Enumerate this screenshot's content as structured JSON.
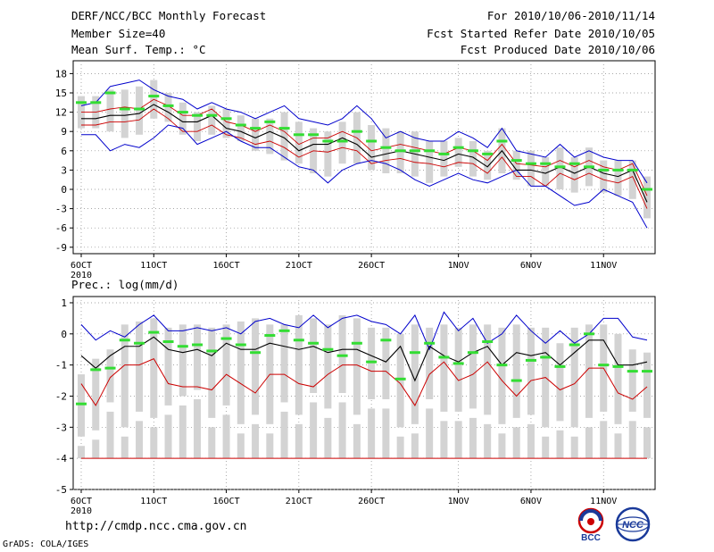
{
  "header": {
    "title": "DERF/NCC/BCC Monthly Forecast",
    "member_size": "Member Size=40",
    "variable": "Mean Surf. Temp.: °C",
    "forecast_period": "For 2010/10/06-2010/11/14",
    "start_date": "Fcst Started Refer Date 2010/10/05",
    "produced_date": "Fcst Produced Date 2010/10/06"
  },
  "footer": {
    "url": "http://cmdp.ncc.cma.gov.cn",
    "credit": "GrADS: COLA/IGES",
    "logo_bcc": "BCC",
    "logo_ncc": "NCC"
  },
  "colors": {
    "box": "#d3d3d3",
    "max": "#0000cc",
    "min": "#cc0000",
    "mean": "#000000",
    "clim": "#33dd33",
    "grid": "#888888",
    "lower": "#cc0000"
  },
  "chart_data": [
    {
      "type": "line",
      "title": "Mean Surf. Temp.: °C",
      "xlabel": "",
      "ylabel": "",
      "x": "days 1-40 (2010/10/06 - 2010/11/14)",
      "x_ticks": [
        {
          "day": 1,
          "label": "6OCT"
        },
        {
          "day": 6,
          "label": "11OCT"
        },
        {
          "day": 11,
          "label": "16OCT"
        },
        {
          "day": 16,
          "label": "21OCT"
        },
        {
          "day": 21,
          "label": "26OCT"
        },
        {
          "day": 27,
          "label": "1NOV"
        },
        {
          "day": 32,
          "label": "6NOV"
        },
        {
          "day": 37,
          "label": "11NOV"
        }
      ],
      "x_sublabel": "2010",
      "ylim": [
        -10,
        20
      ],
      "y_ticks": [
        18,
        15,
        12,
        9,
        6,
        3,
        0,
        -3,
        -6,
        -9
      ],
      "grid": true,
      "series": [
        {
          "name": "ensemble maximum",
          "values": [
            8.5,
            8.5,
            6.0,
            7.0,
            6.5,
            8.0,
            10.0,
            9.5,
            7.0,
            8.0,
            9.0,
            7.5,
            6.5,
            6.5,
            5.0,
            3.5,
            3.0,
            1.0,
            3.0,
            4.0,
            4.5,
            4.0,
            3.0,
            1.5,
            0.5,
            1.5,
            2.5,
            1.5,
            1.0,
            2.0,
            3.0,
            0.5,
            0.5,
            -1.0,
            -2.5,
            -2.0,
            0.0,
            -1.0,
            -2.0,
            -6.0
          ]
        },
        {
          "name": "ensemble mean",
          "values": [
            11.0,
            11.0,
            11.5,
            11.5,
            11.8,
            13.2,
            12.0,
            10.5,
            10.5,
            11.5,
            9.5,
            9.0,
            8.0,
            9.0,
            8.0,
            6.0,
            7.0,
            7.0,
            8.0,
            7.0,
            5.0,
            5.5,
            6.0,
            5.5,
            5.0,
            4.5,
            5.5,
            5.0,
            3.5,
            6.0,
            3.0,
            3.0,
            2.5,
            3.5,
            2.5,
            3.5,
            2.5,
            2.0,
            3.0,
            -2.0
          ]
        },
        {
          "name": "ensemble minimum",
          "values": [
            13.0,
            13.5,
            16.0,
            16.5,
            17.0,
            15.5,
            14.5,
            14.0,
            12.5,
            13.5,
            12.5,
            12.0,
            11.0,
            12.0,
            13.0,
            11.0,
            10.5,
            10.0,
            11.0,
            13.0,
            11.0,
            8.0,
            9.0,
            8.0,
            7.5,
            7.5,
            9.0,
            8.0,
            6.5,
            9.5,
            6.0,
            5.5,
            5.0,
            7.0,
            5.0,
            6.0,
            5.0,
            4.5,
            4.5,
            1.0
          ]
        },
        {
          "name": "lower member bound",
          "values": [
            10.0,
            10.0,
            10.5,
            10.5,
            10.8,
            12.5,
            11.0,
            9.0,
            9.0,
            10.0,
            8.5,
            8.0,
            7.0,
            7.5,
            6.5,
            5.0,
            6.0,
            5.8,
            6.5,
            6.0,
            4.0,
            4.5,
            4.8,
            4.2,
            4.0,
            3.5,
            4.2,
            4.0,
            2.5,
            5.0,
            2.0,
            2.0,
            0.5,
            2.5,
            1.5,
            2.5,
            1.5,
            1.0,
            2.0,
            -3.0
          ]
        },
        {
          "name": "upper member bound",
          "values": [
            12.0,
            12.0,
            12.5,
            12.8,
            12.5,
            14.0,
            13.0,
            11.5,
            11.5,
            12.5,
            10.5,
            10.0,
            9.0,
            10.0,
            9.0,
            7.0,
            8.0,
            8.0,
            9.0,
            8.0,
            6.0,
            6.5,
            7.0,
            6.5,
            6.0,
            5.5,
            6.5,
            6.0,
            4.5,
            7.0,
            4.0,
            3.8,
            3.5,
            4.5,
            3.5,
            4.5,
            3.5,
            3.0,
            4.0,
            -1.0
          ]
        },
        {
          "name": "climatology",
          "values": [
            13.5,
            13.5,
            15.0,
            12.5,
            12.5,
            14.5,
            13.0,
            12.0,
            11.5,
            11.5,
            11.0,
            10.0,
            9.5,
            10.5,
            9.5,
            8.5,
            8.5,
            7.5,
            7.5,
            9.0,
            7.5,
            6.5,
            6.0,
            6.0,
            6.0,
            5.5,
            6.5,
            6.0,
            5.5,
            7.5,
            4.5,
            4.0,
            4.0,
            3.5,
            4.0,
            3.5,
            3.0,
            3.0,
            3.0,
            0.0
          ]
        },
        {
          "name": "spread box low",
          "values": [
            9.5,
            9.5,
            9.0,
            8.0,
            8.5,
            11.0,
            10.5,
            8.5,
            7.5,
            8.5,
            8.0,
            7.5,
            6.0,
            5.5,
            4.5,
            4.0,
            2.5,
            2.0,
            4.0,
            4.0,
            3.0,
            2.5,
            2.5,
            2.0,
            1.0,
            2.0,
            3.5,
            2.0,
            1.5,
            2.5,
            1.5,
            0.5,
            0.5,
            0.0,
            -0.5,
            0.5,
            -0.5,
            -1.0,
            -1.5,
            -4.5
          ]
        },
        {
          "name": "spread box high",
          "values": [
            14.5,
            14.5,
            15.5,
            15.5,
            16.0,
            17.0,
            15.0,
            13.5,
            12.0,
            13.0,
            12.5,
            11.5,
            11.0,
            11.0,
            12.0,
            10.5,
            9.5,
            9.0,
            10.5,
            12.0,
            10.0,
            9.5,
            9.0,
            9.0,
            7.5,
            7.5,
            8.0,
            7.5,
            6.0,
            9.5,
            6.0,
            6.0,
            5.0,
            6.5,
            5.0,
            6.5,
            4.5,
            4.5,
            4.5,
            2.0
          ]
        }
      ]
    },
    {
      "type": "line",
      "title": "Prec.: log(mm/d)",
      "xlabel": "",
      "ylabel": "",
      "x": "days 1-40 (2010/10/06 - 2010/11/14)",
      "x_ticks": [
        {
          "day": 1,
          "label": "6OCT"
        },
        {
          "day": 6,
          "label": "11OCT"
        },
        {
          "day": 11,
          "label": "16OCT"
        },
        {
          "day": 16,
          "label": "21OCT"
        },
        {
          "day": 21,
          "label": "26OCT"
        },
        {
          "day": 27,
          "label": "1NOV"
        },
        {
          "day": 32,
          "label": "6NOV"
        },
        {
          "day": 37,
          "label": "11NOV"
        }
      ],
      "x_sublabel": "2010",
      "ylim": [
        -5,
        1.2
      ],
      "y_ticks": [
        1,
        0,
        -1,
        -2,
        -3,
        -4,
        -5
      ],
      "grid": true,
      "lower_limit": -4,
      "series": [
        {
          "name": "ensemble maximum",
          "values": [
            0.3,
            -0.2,
            0.1,
            -0.1,
            0.3,
            0.6,
            0.1,
            0.1,
            0.2,
            0.1,
            0.2,
            0.0,
            0.4,
            0.5,
            0.3,
            0.2,
            0.6,
            0.2,
            0.5,
            0.6,
            0.4,
            0.3,
            0.0,
            0.6,
            -0.5,
            0.7,
            0.1,
            0.5,
            -0.3,
            0.0,
            0.6,
            0.1,
            -0.3,
            0.1,
            -0.3,
            0.0,
            0.5,
            0.5,
            -0.1,
            -0.2
          ]
        },
        {
          "name": "ensemble mean",
          "values": [
            -0.7,
            -1.1,
            -0.7,
            -0.4,
            -0.4,
            -0.1,
            -0.5,
            -0.6,
            -0.5,
            -0.7,
            -0.3,
            -0.5,
            -0.5,
            -0.3,
            -0.4,
            -0.5,
            -0.4,
            -0.6,
            -0.5,
            -0.5,
            -0.7,
            -0.9,
            -0.4,
            -1.5,
            -0.4,
            -0.7,
            -0.9,
            -0.6,
            -0.4,
            -1.0,
            -0.6,
            -0.7,
            -0.6,
            -1.0,
            -0.6,
            -0.2,
            -0.2,
            -1.0,
            -1.0,
            -0.9
          ]
        },
        {
          "name": "ensemble minimum",
          "values": [
            -1.6,
            -2.3,
            -1.4,
            -1.0,
            -1.0,
            -0.8,
            -1.6,
            -1.7,
            -1.7,
            -1.8,
            -1.3,
            -1.6,
            -1.9,
            -1.3,
            -1.3,
            -1.6,
            -1.7,
            -1.3,
            -1.0,
            -1.0,
            -1.2,
            -1.2,
            -1.6,
            -2.3,
            -1.3,
            -0.9,
            -1.5,
            -1.3,
            -0.9,
            -1.5,
            -2.0,
            -1.5,
            -1.4,
            -1.8,
            -1.6,
            -1.1,
            -1.1,
            -1.9,
            -2.1,
            -1.7
          ]
        },
        {
          "name": "climatology",
          "values": [
            -2.25,
            -1.15,
            -1.1,
            -0.2,
            -0.3,
            0.05,
            -0.25,
            -0.4,
            -0.35,
            -0.55,
            -0.15,
            -0.35,
            -0.6,
            -0.05,
            0.1,
            -0.2,
            -0.3,
            -0.5,
            -0.7,
            -0.3,
            -0.9,
            -0.2,
            -1.45,
            -0.6,
            -0.3,
            -0.75,
            -0.95,
            -0.6,
            -0.25,
            -1.0,
            -1.5,
            -0.85,
            -0.75,
            -1.05,
            -0.35,
            0.0,
            -1.0,
            -1.05,
            -1.2,
            -1.2
          ]
        },
        {
          "name": "spread box low",
          "values": [
            -4.0,
            -4.0,
            -4.0,
            -4.0,
            -4.0,
            -4.0,
            -4.0,
            -4.0,
            -4.0,
            -4.0,
            -4.0,
            -4.0,
            -4.0,
            -4.0,
            -4.0,
            -4.0,
            -4.0,
            -4.0,
            -4.0,
            -4.0,
            -4.0,
            -4.0,
            -4.0,
            -4.0,
            -4.0,
            -4.0,
            -4.0,
            -4.0,
            -4.0,
            -4.0,
            -4.0,
            -4.0,
            -4.0,
            -4.0,
            -4.0,
            -4.0,
            -4.0,
            -4.0,
            -4.0,
            -4.0
          ]
        },
        {
          "name": "spread box high",
          "values": [
            -1.3,
            -0.8,
            -0.5,
            0.3,
            0.4,
            0.5,
            0.2,
            0.3,
            0.3,
            0.2,
            0.3,
            0.4,
            0.5,
            0.3,
            0.3,
            0.6,
            0.5,
            0.3,
            0.6,
            0.5,
            0.2,
            0.2,
            0.0,
            0.3,
            0.2,
            0.3,
            0.2,
            0.3,
            0.3,
            0.2,
            0.3,
            0.2,
            0.2,
            -0.3,
            0.2,
            0.3,
            0.3,
            0.0,
            -0.5,
            -0.6
          ]
        },
        {
          "name": "spread box gap low",
          "values": [
            -3.6,
            -3.4,
            -2.5,
            -3.3,
            -2.8,
            -3.0,
            -2.6,
            -2.3,
            -2.1,
            -3.0,
            -2.6,
            -3.2,
            -2.9,
            -3.2,
            -2.5,
            -2.9,
            -2.2,
            -2.7,
            -2.2,
            -2.9,
            -2.4,
            -2.4,
            -3.3,
            -3.2,
            -2.4,
            -2.8,
            -2.8,
            -2.7,
            -2.9,
            -3.2,
            -3.0,
            -2.9,
            -3.3,
            -3.1,
            -3.3,
            -3.0,
            -2.8,
            -3.2,
            -2.8,
            -3.0
          ]
        },
        {
          "name": "spread box gap high",
          "values": [
            -3.3,
            -3.1,
            -2.2,
            -3.0,
            -2.5,
            -2.7,
            -2.3,
            -2.0,
            -1.8,
            -2.7,
            -2.3,
            -2.9,
            -2.6,
            -2.9,
            -2.2,
            -2.6,
            -1.9,
            -2.4,
            -1.9,
            -2.6,
            -2.1,
            -2.1,
            -3.0,
            -2.9,
            -2.1,
            -2.5,
            -2.5,
            -2.4,
            -2.6,
            -2.9,
            -2.7,
            -2.6,
            -3.0,
            -2.8,
            -3.0,
            -2.7,
            -2.5,
            -2.9,
            -2.5,
            -2.7
          ]
        }
      ]
    }
  ]
}
